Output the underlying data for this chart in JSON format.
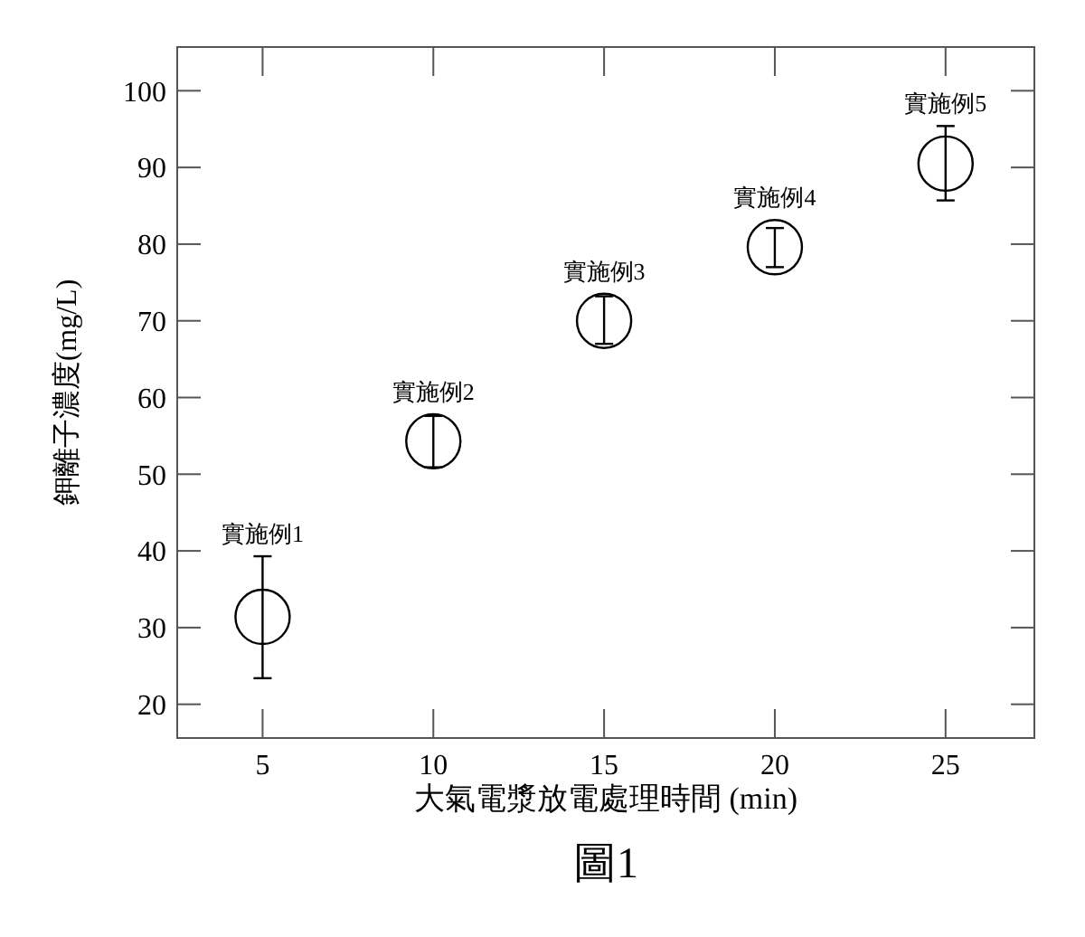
{
  "chart_data": {
    "type": "scatter",
    "xlabel": "大氣電漿放電處理時間 (min)",
    "ylabel": "鉀離子濃度(mg/L)",
    "x": [
      5,
      10,
      15,
      20,
      25
    ],
    "values": [
      31.4,
      54.3,
      70.0,
      79.6,
      90.5
    ],
    "errors": [
      [
        23.4,
        39.3
      ],
      [
        50.9,
        57.6
      ],
      [
        67.0,
        73.2
      ],
      [
        77.0,
        82.1
      ],
      [
        85.7,
        95.4
      ]
    ],
    "color": "#000000",
    "marker": "circle",
    "grid": false,
    "xlim": [
      2.5,
      27.6
    ],
    "xticks": [
      5,
      10,
      15,
      20,
      25
    ],
    "ylim": [
      15.6,
      105.7
    ],
    "yticks": [
      20,
      30,
      40,
      50,
      60,
      70,
      80,
      90,
      100
    ],
    "annotations": [
      {
        "text": "實施例1",
        "x": 5,
        "y": 31.4
      },
      {
        "text": "實施例2",
        "x": 10,
        "y": 54.3
      },
      {
        "text": "實施例3",
        "x": 15,
        "y": 70.0
      },
      {
        "text": "實施例4",
        "x": 20,
        "y": 79.6
      },
      {
        "text": "實施例5",
        "x": 25,
        "y": 90.5
      },
      "圖1"
    ]
  }
}
